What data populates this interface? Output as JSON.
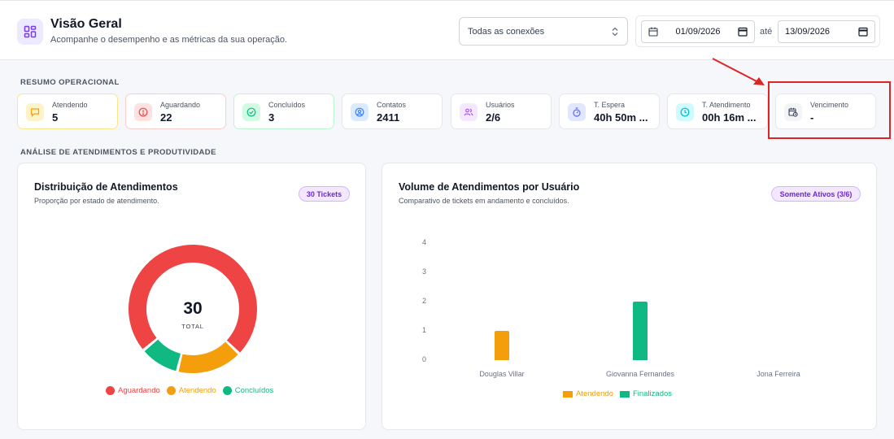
{
  "header": {
    "title": "Visão Geral",
    "subtitle": "Acompanhe o desempenho e as métricas da sua operação.",
    "connection_select": "Todas as conexões",
    "date_from": "01/09/2026",
    "date_to_label": "até",
    "date_to": "13/09/2026"
  },
  "sections": {
    "summary": "RESUMO OPERACIONAL",
    "analysis": "ANÁLISE DE ATENDIMENTOS E PRODUTIVIDADE"
  },
  "cards": [
    {
      "label": "Atendendo",
      "value": "5",
      "icon": "chat-icon",
      "color": "#f59e0b"
    },
    {
      "label": "Aguardando",
      "value": "22",
      "icon": "alert-icon",
      "color": "#ef4444"
    },
    {
      "label": "Concluídos",
      "value": "3",
      "icon": "check-circle-icon",
      "color": "#10b981"
    },
    {
      "label": "Contatos",
      "value": "2411",
      "icon": "contact-icon",
      "color": "#3b82f6"
    },
    {
      "label": "Usuários",
      "value": "2/6",
      "icon": "users-icon",
      "color": "#a855f7"
    },
    {
      "label": "T. Espera",
      "value": "40h 50m ...",
      "icon": "timer-icon",
      "color": "#6366f1"
    },
    {
      "label": "T. Atendimento",
      "value": "00h 16m ...",
      "icon": "clock-icon",
      "color": "#06b6d4"
    },
    {
      "label": "Vencimento",
      "value": "-",
      "icon": "calendar-clock-icon",
      "color": "#6b7280"
    }
  ],
  "donut_panel": {
    "title": "Distribuição de Atendimentos",
    "subtitle": "Proporção por estado de atendimento.",
    "badge": "30 Tickets",
    "total_value": "30",
    "total_label": "TOTAL"
  },
  "bar_panel": {
    "title": "Volume de Atendimentos por Usuário",
    "subtitle": "Comparativo de tickets em andamento e concluídos.",
    "badge": "Somente Ativos (3/6)"
  },
  "chart_data": [
    {
      "type": "pie",
      "categories": [
        "Aguardando",
        "Atendendo",
        "Concluídos"
      ],
      "values": [
        22,
        5,
        3
      ],
      "colors": [
        "#ef4444",
        "#f59e0b",
        "#10b981"
      ],
      "legend": "bottom"
    },
    {
      "type": "bar",
      "categories": [
        "Douglas Villar",
        "Giovanna Fernandes",
        "Jona Ferreira"
      ],
      "series": [
        {
          "name": "Atendendo",
          "values": [
            1,
            0,
            0
          ],
          "color": "#f59e0b"
        },
        {
          "name": "Finalizados",
          "values": [
            0,
            2,
            0
          ],
          "color": "#10b981"
        }
      ],
      "yticks": [
        "0",
        "1",
        "2",
        "3",
        "4"
      ],
      "ylim": [
        0,
        4
      ],
      "legend": "bottom"
    }
  ]
}
